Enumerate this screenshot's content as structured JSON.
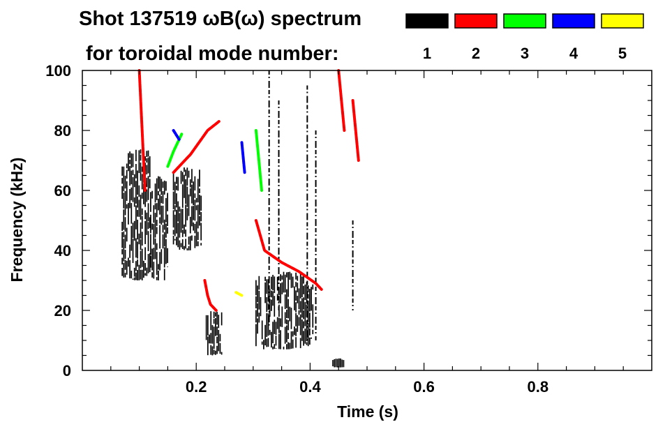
{
  "chart_data": {
    "type": "heatmap",
    "title": "Shot 137519 ωB(ω) spectrum",
    "subtitle": "for toroidal mode number:",
    "xlabel": "Time (s)",
    "ylabel": "Frequency (kHz)",
    "xlim": [
      0.0,
      1.0
    ],
    "ylim": [
      0,
      100
    ],
    "xticks": [
      {
        "value": 0.2,
        "label": "0.2"
      },
      {
        "value": 0.4,
        "label": "0.4"
      },
      {
        "value": 0.6,
        "label": "0.6"
      },
      {
        "value": 0.8,
        "label": "0.8"
      }
    ],
    "yticks": [
      {
        "value": 0,
        "label": "0"
      },
      {
        "value": 20,
        "label": "20"
      },
      {
        "value": 40,
        "label": "40"
      },
      {
        "value": 60,
        "label": "60"
      },
      {
        "value": 80,
        "label": "80"
      },
      {
        "value": 100,
        "label": "100"
      }
    ],
    "legend": {
      "placement": "top-right",
      "entries": [
        {
          "label": "1",
          "color": "#000000"
        },
        {
          "label": "2",
          "color": "#ff0000"
        },
        {
          "label": "3",
          "color": "#00ff00"
        },
        {
          "label": "4",
          "color": "#0000ff"
        },
        {
          "label": "5",
          "color": "#ffff00"
        }
      ]
    },
    "series": [
      {
        "mode": "1",
        "color": "#000000",
        "features": [
          {
            "kind": "blob",
            "t0": 0.07,
            "t1": 0.12,
            "f0": 30,
            "f1": 75
          },
          {
            "kind": "blob",
            "t0": 0.12,
            "t1": 0.15,
            "f0": 30,
            "f1": 65
          },
          {
            "kind": "blob",
            "t0": 0.16,
            "t1": 0.21,
            "f0": 40,
            "f1": 68
          },
          {
            "kind": "blob",
            "t0": 0.215,
            "t1": 0.245,
            "f0": 5,
            "f1": 20
          },
          {
            "kind": "blob",
            "t0": 0.305,
            "t1": 0.405,
            "f0": 7,
            "f1": 33
          },
          {
            "kind": "blob",
            "t0": 0.44,
            "t1": 0.46,
            "f0": 1,
            "f1": 4
          },
          {
            "kind": "streak",
            "t": 0.328,
            "f0": 15,
            "f1": 100
          },
          {
            "kind": "streak",
            "t": 0.345,
            "f0": 20,
            "f1": 90
          },
          {
            "kind": "streak",
            "t": 0.395,
            "f0": 10,
            "f1": 95
          },
          {
            "kind": "streak",
            "t": 0.41,
            "f0": 10,
            "f1": 80
          },
          {
            "kind": "streak",
            "t": 0.475,
            "f0": 20,
            "f1": 50
          }
        ]
      },
      {
        "mode": "2",
        "color": "#ff0000",
        "features": [
          {
            "kind": "line",
            "points": [
              [
                0.1,
                100
              ],
              [
                0.105,
                80
              ],
              [
                0.11,
                60
              ]
            ]
          },
          {
            "kind": "line",
            "points": [
              [
                0.16,
                66
              ],
              [
                0.19,
                72
              ],
              [
                0.22,
                80
              ],
              [
                0.24,
                83
              ]
            ]
          },
          {
            "kind": "line",
            "points": [
              [
                0.305,
                50
              ],
              [
                0.32,
                40
              ],
              [
                0.35,
                36
              ],
              [
                0.38,
                33
              ],
              [
                0.41,
                29
              ],
              [
                0.42,
                27
              ]
            ]
          },
          {
            "kind": "line",
            "points": [
              [
                0.215,
                30
              ],
              [
                0.22,
                25
              ],
              [
                0.225,
                22
              ],
              [
                0.235,
                20
              ]
            ]
          },
          {
            "kind": "line",
            "points": [
              [
                0.45,
                100
              ],
              [
                0.455,
                90
              ],
              [
                0.46,
                80
              ]
            ]
          },
          {
            "kind": "line",
            "points": [
              [
                0.475,
                90
              ],
              [
                0.48,
                80
              ],
              [
                0.485,
                70
              ]
            ]
          }
        ]
      },
      {
        "mode": "3",
        "color": "#00ff00",
        "features": [
          {
            "kind": "line",
            "points": [
              [
                0.15,
                68
              ],
              [
                0.16,
                73
              ],
              [
                0.175,
                79
              ]
            ]
          },
          {
            "kind": "line",
            "points": [
              [
                0.305,
                80
              ],
              [
                0.31,
                70
              ],
              [
                0.315,
                60
              ]
            ]
          }
        ]
      },
      {
        "mode": "4",
        "color": "#0000ff",
        "features": [
          {
            "kind": "line",
            "points": [
              [
                0.16,
                80
              ],
              [
                0.17,
                77
              ]
            ]
          },
          {
            "kind": "line",
            "points": [
              [
                0.28,
                76
              ],
              [
                0.285,
                66
              ]
            ]
          }
        ]
      },
      {
        "mode": "5",
        "color": "#ffff00",
        "features": [
          {
            "kind": "line",
            "points": [
              [
                0.27,
                26
              ],
              [
                0.28,
                25
              ]
            ]
          }
        ]
      }
    ]
  }
}
